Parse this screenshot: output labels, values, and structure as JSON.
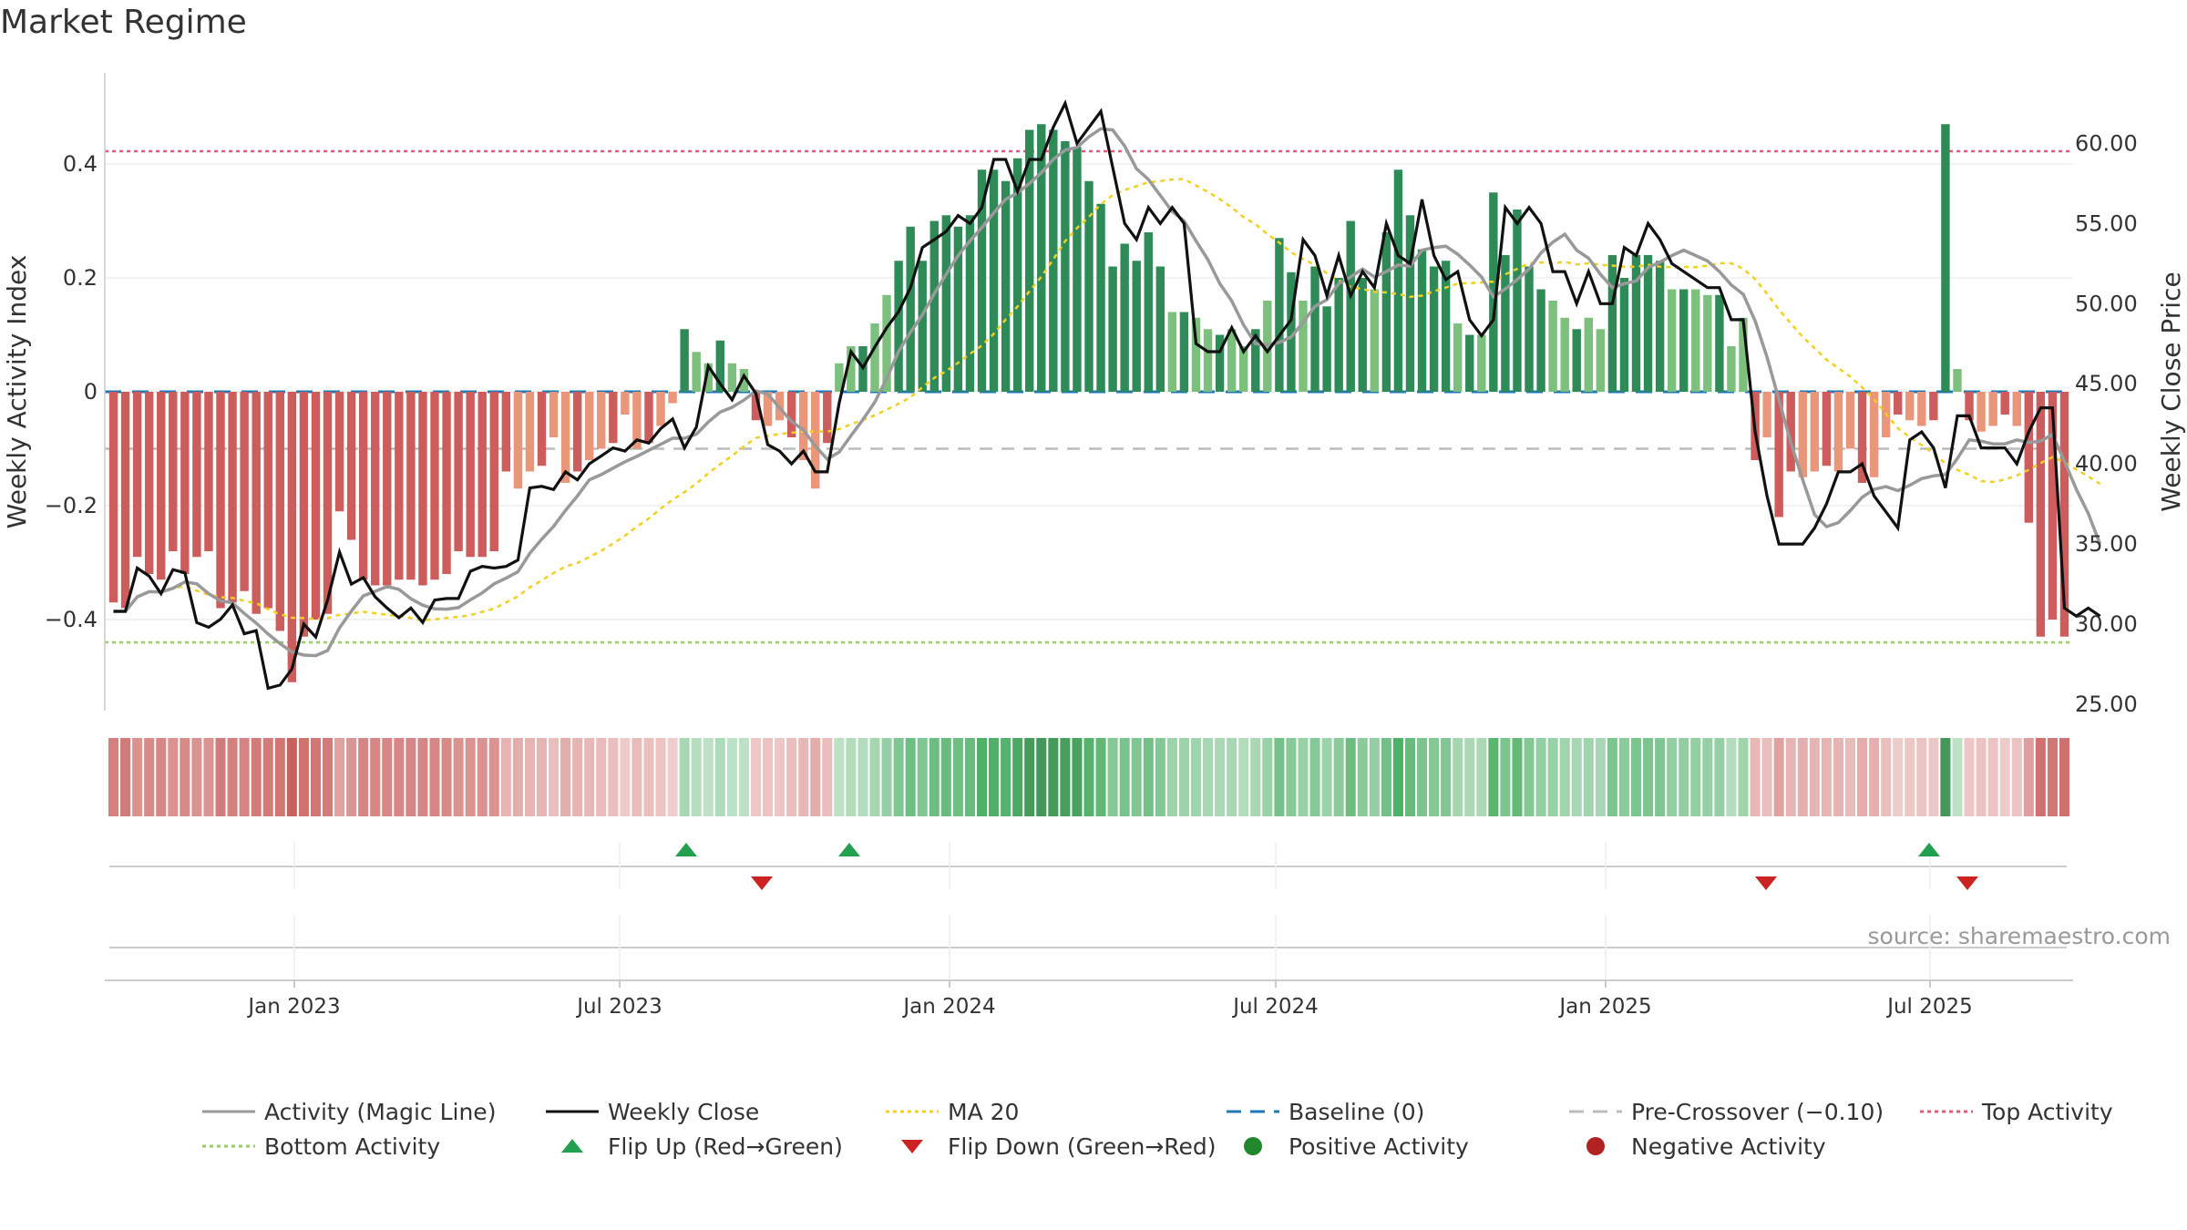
{
  "title": "Market Regime",
  "source": "source: sharemaestro.com",
  "colors": {
    "pos_strong": "#2e8b57",
    "pos_light": "#7dbf7d",
    "neg_strong": "#cd5c5c",
    "neg_light": "#e9967a",
    "magic_line": "#999999",
    "weekly_close": "#111111",
    "ma20": "#f0d020",
    "baseline": "#1f77b4",
    "pre_crossover": "#bbbbbb",
    "top_activity": "#e05a7a",
    "bottom_activity": "#99cc66",
    "flip_up": "#22a050",
    "flip_down": "#cc2222"
  },
  "chart_data": {
    "type": "bar",
    "title": "Market Regime",
    "ylabel_left": "Weekly Activity Index",
    "ylabel_right": "Weekly Close Price",
    "x_ticks": [
      "Jan 2023",
      "Jul 2023",
      "Jan 2024",
      "Jul 2024",
      "Jan 2025",
      "Jul 2025"
    ],
    "y_left_ticks": [
      0.4,
      0.2,
      0,
      -0.2,
      -0.4
    ],
    "y_left_tick_labels": [
      "0.4",
      "0.2",
      "0",
      "−0.2",
      "−0.4"
    ],
    "y_left_range": [
      -0.56,
      0.56
    ],
    "y_right_ticks": [
      60,
      55,
      50,
      45,
      40,
      35,
      30,
      25
    ],
    "y_right_tick_labels": [
      "60.00",
      "55.00",
      "50.00",
      "45.00",
      "40.00",
      "35.00",
      "30.00",
      "25.00"
    ],
    "y_right_range": [
      24.6,
      64.4
    ],
    "reference_lines": {
      "top_activity": 0.4,
      "bottom_activity": -0.44,
      "pre_crossover": -0.1,
      "baseline": 0
    },
    "activity": [
      -0.37,
      -0.38,
      -0.29,
      -0.32,
      -0.33,
      -0.28,
      -0.32,
      -0.29,
      -0.28,
      -0.38,
      -0.37,
      -0.35,
      -0.39,
      -0.38,
      -0.42,
      -0.51,
      -0.43,
      -0.4,
      -0.39,
      -0.21,
      -0.26,
      -0.33,
      -0.34,
      -0.34,
      -0.33,
      -0.33,
      -0.34,
      -0.33,
      -0.32,
      -0.28,
      -0.29,
      -0.29,
      -0.28,
      -0.14,
      -0.17,
      -0.14,
      -0.13,
      -0.08,
      -0.16,
      -0.14,
      -0.12,
      -0.1,
      -0.09,
      -0.04,
      -0.1,
      -0.09,
      -0.06,
      -0.02,
      0.11,
      0.07,
      0.05,
      0.09,
      0.05,
      0.04,
      -0.05,
      -0.06,
      -0.05,
      -0.08,
      -0.12,
      -0.17,
      -0.09,
      0.05,
      0.08,
      0.08,
      0.12,
      0.17,
      0.23,
      0.29,
      0.23,
      0.3,
      0.31,
      0.29,
      0.31,
      0.39,
      0.39,
      0.37,
      0.41,
      0.46,
      0.47,
      0.46,
      0.44,
      0.43,
      0.37,
      0.33,
      0.22,
      0.26,
      0.23,
      0.28,
      0.22,
      0.14,
      0.14,
      0.13,
      0.11,
      0.1,
      0.11,
      0.08,
      0.11,
      0.16,
      0.27,
      0.21,
      0.16,
      0.22,
      0.15,
      0.2,
      0.3,
      0.2,
      0.18,
      0.28,
      0.39,
      0.31,
      0.25,
      0.22,
      0.23,
      0.12,
      0.1,
      0.1,
      0.35,
      0.24,
      0.32,
      0.22,
      0.18,
      0.16,
      0.13,
      0.11,
      0.13,
      0.11,
      0.24,
      0.2,
      0.24,
      0.24,
      0.23,
      0.18,
      0.18,
      0.18,
      0.17,
      0.17,
      0.08,
      0.13,
      -0.12,
      -0.08,
      -0.22,
      -0.14,
      -0.15,
      -0.14,
      -0.13,
      -0.14,
      -0.1,
      -0.16,
      -0.15,
      -0.08,
      -0.04,
      -0.05,
      -0.06,
      -0.05,
      0.47,
      0.04,
      -0.05,
      -0.07,
      -0.06,
      -0.04,
      -0.06,
      -0.23,
      -0.43,
      -0.4,
      -0.43
    ],
    "weekly_close": [
      30.8,
      30.8,
      33.5,
      33.0,
      31.9,
      33.4,
      33.2,
      30.1,
      29.8,
      30.3,
      31.2,
      29.4,
      29.6,
      26.0,
      26.2,
      27.2,
      30.0,
      29.2,
      31.5,
      34.5,
      32.5,
      32.9,
      31.7,
      31.0,
      30.4,
      31.0,
      30.1,
      31.5,
      31.6,
      31.6,
      33.3,
      33.6,
      33.5,
      33.6,
      34.0,
      38.5,
      38.6,
      38.4,
      39.5,
      39.0,
      40.0,
      40.5,
      41.0,
      40.8,
      41.5,
      41.3,
      42.2,
      42.8,
      41.0,
      42.3,
      46.1,
      45.0,
      44.0,
      45.5,
      44.4,
      41.2,
      40.8,
      40.0,
      40.8,
      39.5,
      39.5,
      43.8,
      47.0,
      46.0,
      47.3,
      48.5,
      49.5,
      51.0,
      53.5,
      54.0,
      54.5,
      55.5,
      55.0,
      56.0,
      59.0,
      59.0,
      57.0,
      59.0,
      59.0,
      61.0,
      62.5,
      60.0,
      61.0,
      62.0,
      58.5,
      55.0,
      54.0,
      56.0,
      55.0,
      56.0,
      55.0,
      47.5,
      47.0,
      47.0,
      48.5,
      47.0,
      48.0,
      47.0,
      48.0,
      49.0,
      54.0,
      53.0,
      50.5,
      53.0,
      50.5,
      52.0,
      51.0,
      55.0,
      53.0,
      52.5,
      56.5,
      53.0,
      51.5,
      52.0,
      49.0,
      48.0,
      49.0,
      56.0,
      55.0,
      56.0,
      55.0,
      52.0,
      52.0,
      50.0,
      52.0,
      50.0,
      50.0,
      53.5,
      53.0,
      55.0,
      54.0,
      52.5,
      52.0,
      51.5,
      51.0,
      51.0,
      49.0,
      49.0,
      42.0,
      38.0,
      35.0,
      35.0,
      35.0,
      36.0,
      37.5,
      39.5,
      39.5,
      40.0,
      38.0,
      37.0,
      36.0,
      41.5,
      42.0,
      41.0,
      38.5,
      43.0,
      43.0,
      41.0,
      41.0,
      41.0,
      40.0,
      42.0,
      43.5,
      43.5,
      31.0,
      30.5,
      31.0,
      30.5
    ]
  },
  "flip_markers": {
    "up": [
      "Aug 2023",
      "Oct 2023",
      "Jul 2025"
    ],
    "down": [
      "Sep 2023",
      "Apr 2025",
      "Aug 2025"
    ]
  },
  "legend": [
    {
      "label": "Activity (Magic Line)",
      "symbol": "solid-line",
      "color": "#999999"
    },
    {
      "label": "Weekly Close",
      "symbol": "solid-line",
      "color": "#111111"
    },
    {
      "label": "MA 20",
      "symbol": "dotted-line",
      "color": "#f0d020"
    },
    {
      "label": "Baseline (0)",
      "symbol": "dashed-line",
      "color": "#1f77b4"
    },
    {
      "label": "Pre-Crossover (−0.10)",
      "symbol": "dashed-line",
      "color": "#bbbbbb"
    },
    {
      "label": "Top Activity",
      "symbol": "dotted-line",
      "color": "#e05a7a"
    },
    {
      "label": "Bottom Activity",
      "symbol": "dotted-line",
      "color": "#99cc66"
    },
    {
      "label": "Flip Up (Red→Green)",
      "symbol": "triangle-up",
      "color": "#22a050"
    },
    {
      "label": "Flip Down (Green→Red)",
      "symbol": "triangle-down",
      "color": "#cc2222"
    },
    {
      "label": "Positive Activity",
      "symbol": "circle",
      "color": "#22882e"
    },
    {
      "label": "Negative Activity",
      "symbol": "circle",
      "color": "#b22222"
    }
  ]
}
